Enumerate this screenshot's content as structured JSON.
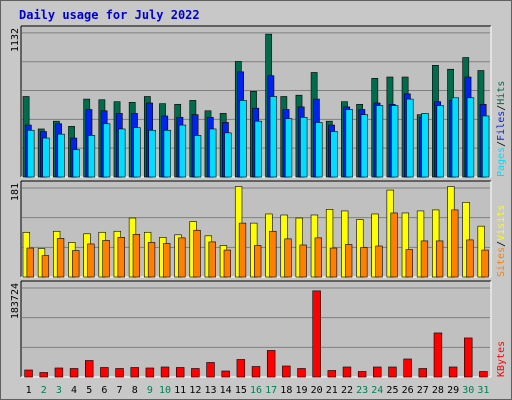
{
  "title": "Daily usage for July 2022",
  "colors": {
    "hits": "#006c4c",
    "files": "#0023ee",
    "pages": "#00ddff",
    "visits": "#ffff00",
    "sites": "#ff8000",
    "kbytes": "#ff0000",
    "title": "#0000cc",
    "weekend_day": "#008050",
    "weekday_day": "#000000",
    "panel_bg": "#c0c0c0"
  },
  "axis_max_labels": {
    "top": "1132",
    "middle": "181",
    "bottom": "183724"
  },
  "legend": {
    "top": [
      "Pages",
      "/",
      "Files",
      "/",
      "Hits"
    ],
    "middle": [
      "Sites",
      "/",
      "Visits"
    ],
    "bottom": [
      "KBytes"
    ]
  },
  "chart_data": [
    {
      "type": "bar",
      "title": "Daily usage for July 2022",
      "panel": "top",
      "categories": [
        "1",
        "2",
        "3",
        "4",
        "5",
        "6",
        "7",
        "8",
        "9",
        "10",
        "11",
        "12",
        "13",
        "14",
        "15",
        "16",
        "17",
        "18",
        "19",
        "20",
        "21",
        "22",
        "23",
        "24",
        "25",
        "26",
        "27",
        "28",
        "29",
        "30",
        "31"
      ],
      "ylim": [
        0,
        1132
      ],
      "series": [
        {
          "name": "Hits",
          "values": [
            620,
            370,
            430,
            390,
            600,
            595,
            580,
            575,
            620,
            565,
            560,
            590,
            510,
            490,
            890,
            660,
            1100,
            620,
            630,
            805,
            430,
            580,
            560,
            760,
            770,
            770,
            480,
            860,
            830,
            920,
            820
          ]
        },
        {
          "name": "Files",
          "values": [
            400,
            350,
            410,
            300,
            520,
            510,
            490,
            490,
            570,
            470,
            460,
            480,
            460,
            420,
            810,
            530,
            780,
            520,
            540,
            600,
            400,
            540,
            520,
            570,
            560,
            640,
            460,
            580,
            590,
            770,
            560
          ]
        },
        {
          "name": "Pages",
          "values": [
            360,
            300,
            330,
            210,
            320,
            410,
            370,
            380,
            360,
            360,
            400,
            320,
            370,
            340,
            590,
            430,
            620,
            450,
            460,
            420,
            350,
            520,
            480,
            550,
            550,
            600,
            490,
            550,
            610,
            610,
            470
          ]
        }
      ]
    },
    {
      "type": "bar",
      "panel": "middle",
      "categories": [
        "1",
        "2",
        "3",
        "4",
        "5",
        "6",
        "7",
        "8",
        "9",
        "10",
        "11",
        "12",
        "13",
        "14",
        "15",
        "16",
        "17",
        "18",
        "19",
        "20",
        "21",
        "22",
        "23",
        "24",
        "25",
        "26",
        "27",
        "28",
        "29",
        "30",
        "31"
      ],
      "ylim": [
        0,
        181
      ],
      "series": [
        {
          "name": "Visits",
          "values": [
            88,
            56,
            90,
            68,
            85,
            88,
            90,
            116,
            88,
            78,
            83,
            109,
            81,
            62,
            178,
            106,
            124,
            122,
            116,
            122,
            133,
            130,
            113,
            124,
            171,
            126,
            130,
            132,
            178,
            147,
            100
          ]
        },
        {
          "name": "Sites",
          "values": [
            57,
            42,
            76,
            52,
            65,
            72,
            78,
            84,
            68,
            66,
            77,
            92,
            69,
            53,
            106,
            62,
            90,
            75,
            63,
            77,
            57,
            64,
            58,
            61,
            126,
            54,
            71,
            71,
            132,
            73,
            53
          ]
        }
      ]
    },
    {
      "type": "bar",
      "panel": "bottom",
      "categories": [
        "1",
        "2",
        "3",
        "4",
        "5",
        "6",
        "7",
        "8",
        "9",
        "10",
        "11",
        "12",
        "13",
        "14",
        "15",
        "16",
        "17",
        "18",
        "19",
        "20",
        "21",
        "22",
        "23",
        "24",
        "25",
        "26",
        "27",
        "28",
        "29",
        "30",
        "31"
      ],
      "ylim": [
        0,
        183724
      ],
      "series": [
        {
          "name": "KBytes",
          "values": [
            14000,
            9000,
            18000,
            17000,
            33000,
            19000,
            17000,
            19000,
            18000,
            20000,
            19000,
            17000,
            29000,
            12000,
            35000,
            21000,
            53000,
            22000,
            17000,
            172000,
            13000,
            20000,
            11000,
            20000,
            20000,
            36000,
            17000,
            88000,
            20000,
            78000,
            11000
          ]
        }
      ]
    }
  ],
  "weekend_days": [
    "2",
    "3",
    "9",
    "10",
    "16",
    "17",
    "23",
    "24",
    "30",
    "31"
  ]
}
